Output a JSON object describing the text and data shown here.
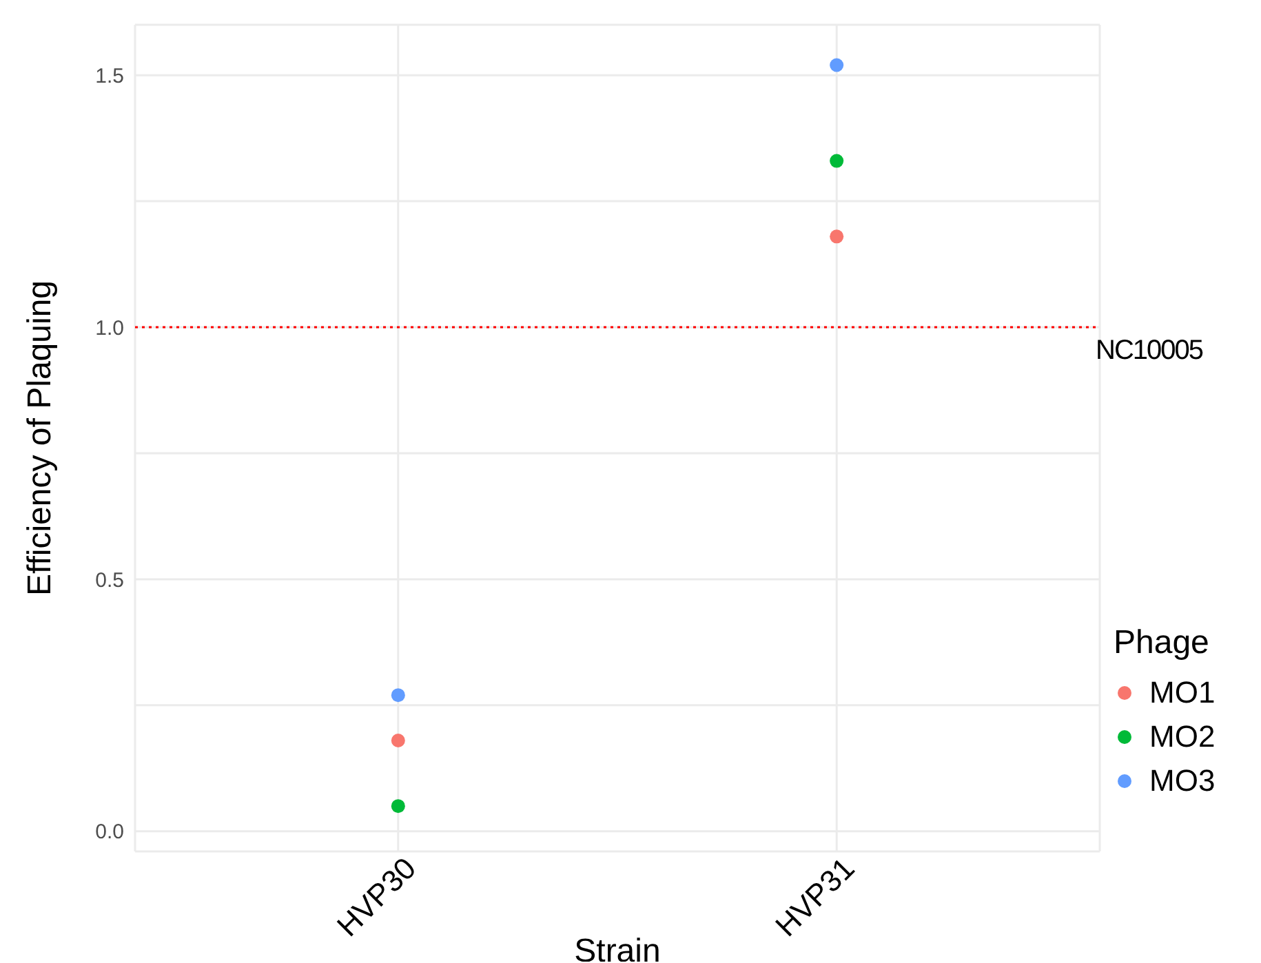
{
  "chart_data": {
    "type": "scatter",
    "xlabel": "Strain",
    "ylabel": "Efficiency of Plaquing",
    "legend_title": "Phage",
    "categories": [
      "HVP30",
      "HVP31"
    ],
    "series": [
      {
        "name": "MO1",
        "color": "#f8766d",
        "values": [
          0.18,
          1.18
        ]
      },
      {
        "name": "MO2",
        "color": "#00ba38",
        "values": [
          0.05,
          1.33
        ]
      },
      {
        "name": "MO3",
        "color": "#619cff",
        "values": [
          0.27,
          1.52
        ]
      }
    ],
    "ylim": [
      -0.04,
      1.6
    ],
    "yticks": [
      "0.0",
      {
        "value": 0.25,
        "label": null
      },
      {
        "value": 0.5,
        "label": "0.5"
      },
      {
        "value": 0.75,
        "label": null
      },
      {
        "value": 1,
        "label": "1.0"
      },
      {
        "value": 1.25,
        "label": null
      },
      {
        "value": 1.5,
        "label": "1.5"
      }
    ],
    "ref_lines": [
      {
        "axis": "y",
        "value": 1,
        "label": "NC10005",
        "color": "#ff0000",
        "line_style": "dotted"
      }
    ],
    "grid": true,
    "legend": "right",
    "marker": "circle"
  }
}
